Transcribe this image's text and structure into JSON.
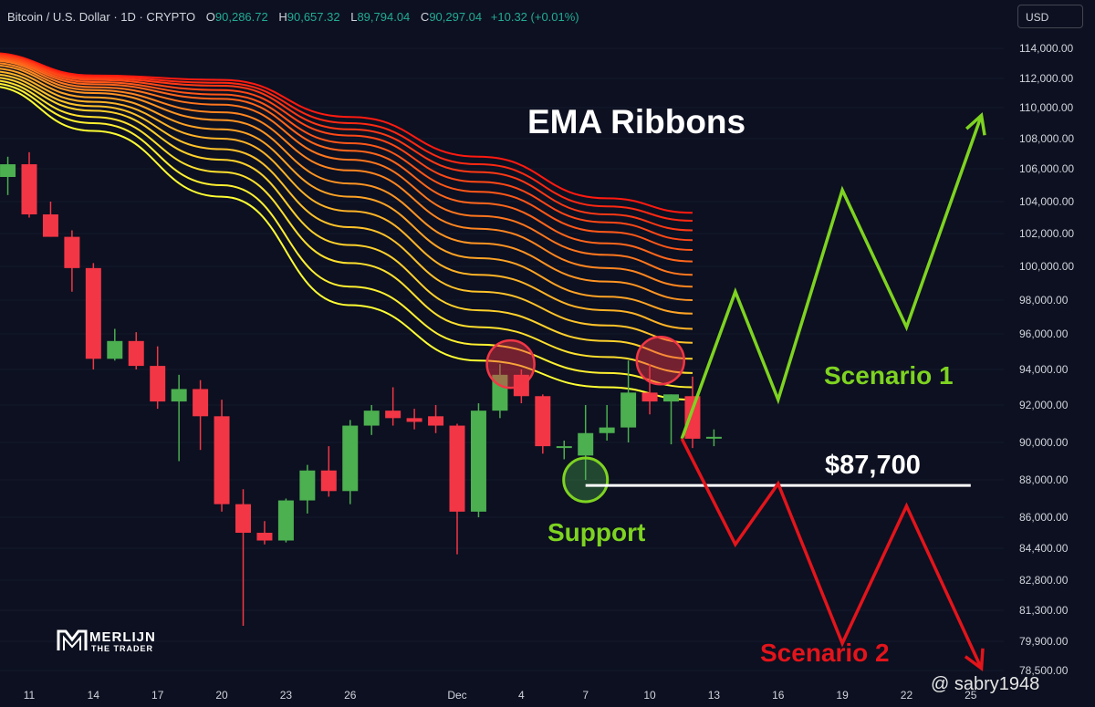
{
  "header": {
    "symbol": "Bitcoin / U.S. Dollar · 1D · CRYPTO",
    "open_label": "O",
    "open": "90,286.72",
    "high_label": "H",
    "high": "90,657.32",
    "low_label": "L",
    "low": "89,794.04",
    "close_label": "C",
    "close": "90,297.04",
    "change": "+10.32 (+0.01%)"
  },
  "currency_button": "USD",
  "annotations": {
    "title": "EMA Ribbons",
    "scenario1": "Scenario 1",
    "scenario2": "Scenario 2",
    "support": "Support",
    "price_level": "$87,700"
  },
  "logo": {
    "line1": "MERLIJN",
    "line2": "THE TRADER"
  },
  "watermark": "@ sabry1948",
  "colors": {
    "background": "#0c1020",
    "up": "#4caf50",
    "down": "#f23645",
    "scenario1": "#7ed321",
    "scenario2": "#e3141b",
    "support_line": "#ffffff",
    "ribbon_near": "#ffff33",
    "ribbon_far": "#ff1a10"
  },
  "chart_data": {
    "type": "candlestick",
    "y_axis_ticks": [
      {
        "label": "114,000.00",
        "value": 114000
      },
      {
        "label": "112,000.00",
        "value": 112000
      },
      {
        "label": "110,000.00",
        "value": 110000
      },
      {
        "label": "108,000.00",
        "value": 108000
      },
      {
        "label": "106,000.00",
        "value": 106000
      },
      {
        "label": "104,000.00",
        "value": 104000
      },
      {
        "label": "102,000.00",
        "value": 102000
      },
      {
        "label": "100,000.00",
        "value": 100000
      },
      {
        "label": "98,000.00",
        "value": 98000
      },
      {
        "label": "96,000.00",
        "value": 96000
      },
      {
        "label": "94,000.00",
        "value": 94000
      },
      {
        "label": "92,000.00",
        "value": 92000
      },
      {
        "label": "90,000.00",
        "value": 90000
      },
      {
        "label": "88,000.00",
        "value": 88000
      },
      {
        "label": "86,000.00",
        "value": 86000
      },
      {
        "label": "84,400.00",
        "value": 84400
      },
      {
        "label": "82,800.00",
        "value": 82800
      },
      {
        "label": "81,300.00",
        "value": 81300
      },
      {
        "label": "79,900.00",
        "value": 79900
      },
      {
        "label": "78,500.00",
        "value": 78500
      }
    ],
    "x_axis_ticks": [
      {
        "label": "11",
        "day": 0
      },
      {
        "label": "14",
        "day": 3
      },
      {
        "label": "17",
        "day": 6
      },
      {
        "label": "20",
        "day": 9
      },
      {
        "label": "23",
        "day": 12
      },
      {
        "label": "26",
        "day": 15
      },
      {
        "label": "Dec",
        "day": 20
      },
      {
        "label": "4",
        "day": 23
      },
      {
        "label": "7",
        "day": 26
      },
      {
        "label": "10",
        "day": 29
      },
      {
        "label": "13",
        "day": 32
      },
      {
        "label": "16",
        "day": 35
      },
      {
        "label": "19",
        "day": 38
      },
      {
        "label": "22",
        "day": 41
      },
      {
        "label": "25",
        "day": 44
      }
    ],
    "candles": [
      {
        "day": -1,
        "o": 105500,
        "h": 106800,
        "l": 104400,
        "c": 106300
      },
      {
        "day": 0,
        "o": 106300,
        "h": 107100,
        "l": 103000,
        "c": 103200
      },
      {
        "day": 1,
        "o": 103200,
        "h": 104000,
        "l": 101800,
        "c": 101800
      },
      {
        "day": 2,
        "o": 101800,
        "h": 102200,
        "l": 98500,
        "c": 99900
      },
      {
        "day": 3,
        "o": 99900,
        "h": 100200,
        "l": 94000,
        "c": 94600
      },
      {
        "day": 4,
        "o": 94600,
        "h": 96300,
        "l": 94500,
        "c": 95600
      },
      {
        "day": 5,
        "o": 95600,
        "h": 96100,
        "l": 94000,
        "c": 94200
      },
      {
        "day": 6,
        "o": 94200,
        "h": 95300,
        "l": 91800,
        "c": 92200
      },
      {
        "day": 7,
        "o": 92200,
        "h": 93700,
        "l": 89000,
        "c": 92900
      },
      {
        "day": 8,
        "o": 92900,
        "h": 93400,
        "l": 89600,
        "c": 91400
      },
      {
        "day": 9,
        "o": 91400,
        "h": 92300,
        "l": 86300,
        "c": 86700
      },
      {
        "day": 10,
        "o": 86700,
        "h": 87500,
        "l": 80600,
        "c": 85200
      },
      {
        "day": 11,
        "o": 85200,
        "h": 85800,
        "l": 84600,
        "c": 84800
      },
      {
        "day": 12,
        "o": 84800,
        "h": 87000,
        "l": 84700,
        "c": 86900
      },
      {
        "day": 13,
        "o": 86900,
        "h": 88800,
        "l": 86200,
        "c": 88500
      },
      {
        "day": 14,
        "o": 88500,
        "h": 89800,
        "l": 87100,
        "c": 87400
      },
      {
        "day": 15,
        "o": 87400,
        "h": 91200,
        "l": 86700,
        "c": 90900
      },
      {
        "day": 16,
        "o": 90900,
        "h": 92000,
        "l": 90400,
        "c": 91700
      },
      {
        "day": 17,
        "o": 91700,
        "h": 93000,
        "l": 90900,
        "c": 91300
      },
      {
        "day": 18,
        "o": 91300,
        "h": 91800,
        "l": 90700,
        "c": 91100
      },
      {
        "day": 19,
        "o": 91400,
        "h": 92000,
        "l": 90500,
        "c": 90900
      },
      {
        "day": 20,
        "o": 90900,
        "h": 91000,
        "l": 84100,
        "c": 86300
      },
      {
        "day": 21,
        "o": 86300,
        "h": 92100,
        "l": 86000,
        "c": 91700
      },
      {
        "day": 22,
        "o": 91700,
        "h": 94300,
        "l": 91300,
        "c": 93700
      },
      {
        "day": 23,
        "o": 93700,
        "h": 94000,
        "l": 92100,
        "c": 92500
      },
      {
        "day": 24,
        "o": 92500,
        "h": 92600,
        "l": 89400,
        "c": 89800
      },
      {
        "day": 25,
        "o": 89800,
        "h": 90100,
        "l": 89100,
        "c": 89800
      },
      {
        "day": 26,
        "o": 89300,
        "h": 92000,
        "l": 88000,
        "c": 90500
      },
      {
        "day": 27,
        "o": 90500,
        "h": 92000,
        "l": 90100,
        "c": 90800
      },
      {
        "day": 28,
        "o": 90800,
        "h": 94500,
        "l": 90000,
        "c": 92700
      },
      {
        "day": 29,
        "o": 92700,
        "h": 94300,
        "l": 91500,
        "c": 92200
      },
      {
        "day": 30,
        "o": 92200,
        "h": 92600,
        "l": 89900,
        "c": 92600
      },
      {
        "day": 31,
        "o": 92500,
        "h": 93600,
        "l": 89700,
        "c": 90200
      },
      {
        "day": 32,
        "o": 90300,
        "h": 90700,
        "l": 89800,
        "c": 90300
      }
    ],
    "ema_ribbons": {
      "ribbon_day_points": [
        -2,
        3,
        9,
        15,
        21,
        27,
        31
      ],
      "series": [
        {
          "values": [
            111500,
            108500,
            104300,
            97700,
            94500,
            93000,
            92300
          ]
        },
        {
          "values": [
            111700,
            109000,
            105000,
            98800,
            95400,
            93800,
            93000
          ]
        },
        {
          "values": [
            111900,
            109400,
            105800,
            100200,
            96400,
            94700,
            93800
          ]
        },
        {
          "values": [
            112100,
            109800,
            106600,
            101300,
            97400,
            95600,
            94600
          ]
        },
        {
          "values": [
            112300,
            110100,
            107300,
            102400,
            98500,
            96500,
            95500
          ]
        },
        {
          "values": [
            112500,
            110400,
            108000,
            103400,
            99500,
            97400,
            96300
          ]
        },
        {
          "values": [
            112700,
            110700,
            108600,
            104300,
            100500,
            98200,
            97200
          ]
        },
        {
          "values": [
            112900,
            111000,
            109200,
            105100,
            101400,
            99100,
            98000
          ]
        },
        {
          "values": [
            113050,
            111200,
            109700,
            105900,
            102300,
            99900,
            98800
          ]
        },
        {
          "values": [
            113200,
            111400,
            110200,
            106600,
            103100,
            100700,
            99500
          ]
        },
        {
          "values": [
            113300,
            111600,
            110600,
            107200,
            103900,
            101400,
            100300
          ]
        },
        {
          "values": [
            113400,
            111750,
            110900,
            107700,
            104600,
            102100,
            101000
          ]
        },
        {
          "values": [
            113500,
            111900,
            111200,
            108200,
            105200,
            102700,
            101600
          ]
        },
        {
          "values": [
            113600,
            112000,
            111500,
            108600,
            105800,
            103200,
            102200
          ]
        },
        {
          "values": [
            113650,
            112100,
            111700,
            109000,
            106300,
            103700,
            102800
          ]
        },
        {
          "values": [
            113700,
            112200,
            111900,
            109400,
            106800,
            104200,
            103300
          ]
        }
      ]
    },
    "rejection_circles": [
      {
        "day": 22.5,
        "price": 94300
      },
      {
        "day": 29.5,
        "price": 94500
      }
    ],
    "support_circle": {
      "day": 26,
      "price": 88000
    },
    "support_level": {
      "value": 87700,
      "from_day": 26,
      "to_day": 44
    },
    "scenario_1_path": [
      [
        30.5,
        90200
      ],
      [
        33,
        98500
      ],
      [
        35,
        92300
      ],
      [
        38,
        104700
      ],
      [
        41,
        96400
      ],
      [
        44.5,
        109500
      ]
    ],
    "scenario_2_path": [
      [
        30.5,
        90200
      ],
      [
        33,
        84600
      ],
      [
        35,
        87800
      ],
      [
        38,
        79800
      ],
      [
        41,
        86600
      ],
      [
        44.5,
        78600
      ]
    ]
  }
}
